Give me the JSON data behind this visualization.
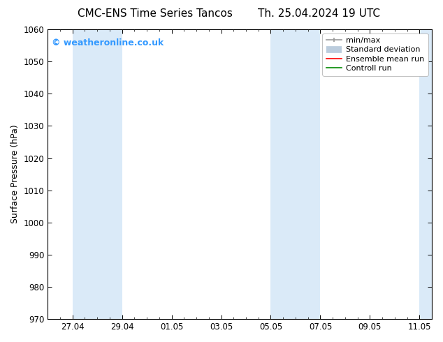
{
  "title_left": "CMC-ENS Time Series Tancos",
  "title_right": "Th. 25.04.2024 19 UTC",
  "ylabel": "Surface Pressure (hPa)",
  "ylim": [
    970,
    1060
  ],
  "yticks": [
    970,
    980,
    990,
    1000,
    1010,
    1020,
    1030,
    1040,
    1050,
    1060
  ],
  "xtick_labels": [
    "27.04",
    "29.04",
    "01.05",
    "03.05",
    "05.05",
    "07.05",
    "09.05",
    "11.05"
  ],
  "xtick_major_positions": [
    2,
    6,
    10,
    14,
    18,
    22,
    26,
    30
  ],
  "xtick_minor_positions": [
    0,
    1,
    2,
    3,
    4,
    5,
    6,
    7,
    8,
    9,
    10,
    11,
    12,
    13,
    14,
    15,
    16,
    17,
    18,
    19,
    20,
    21,
    22,
    23,
    24,
    25,
    26,
    27,
    28,
    29,
    30,
    31
  ],
  "x_total": 31,
  "shaded_bands": [
    {
      "x_start": 2,
      "x_end": 6
    },
    {
      "x_start": 18,
      "x_end": 22
    },
    {
      "x_start": 30,
      "x_end": 31
    }
  ],
  "shaded_color": "#daeaf8",
  "watermark_text": "© weatheronline.co.uk",
  "watermark_color": "#3399ff",
  "background_color": "#ffffff",
  "legend_min_max_color": "#999999",
  "legend_std_color": "#bbccdd",
  "legend_ensemble_color": "#ff0000",
  "legend_control_color": "#008800",
  "title_fontsize": 11,
  "tick_fontsize": 8.5,
  "ylabel_fontsize": 9,
  "legend_fontsize": 8
}
